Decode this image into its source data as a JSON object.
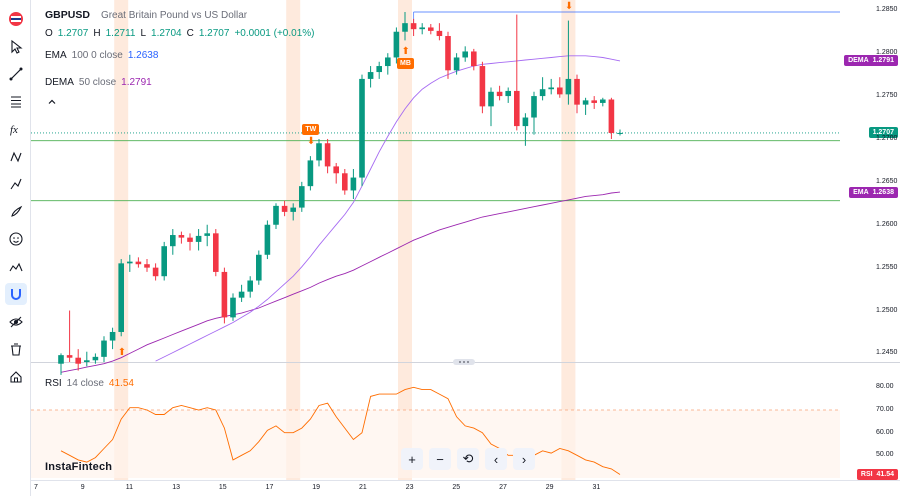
{
  "toolbar": {
    "items": [
      {
        "icon": "flag-icon",
        "label": ""
      },
      {
        "icon": "cursor-icon",
        "label": ""
      },
      {
        "icon": "trendline-icon",
        "label": ""
      },
      {
        "icon": "fibonacci-icon",
        "label": ""
      },
      {
        "icon": "function-icon",
        "label": ""
      },
      {
        "icon": "patterns-icon",
        "label": ""
      },
      {
        "icon": "prediction-icon",
        "label": ""
      },
      {
        "icon": "brush-icon",
        "label": ""
      },
      {
        "icon": "emoji-icon",
        "label": ""
      },
      {
        "icon": "ruler-icon",
        "label": ""
      },
      {
        "icon": "magnet-icon",
        "label": ""
      },
      {
        "icon": "eye-icon",
        "label": ""
      },
      {
        "icon": "trash-icon",
        "label": ""
      },
      {
        "icon": "home-icon",
        "label": ""
      }
    ]
  },
  "header": {
    "symbol": "GBPUSD",
    "description": "Great Britain Pound vs US Dollar",
    "o_label": "O",
    "o_val": "1.2707",
    "h_label": "H",
    "h_val": "1.2711",
    "l_label": "L",
    "l_val": "1.2704",
    "c_label": "C",
    "c_val": "1.2707",
    "change": "+0.0001 (+0.01%)"
  },
  "ema": {
    "name": "EMA",
    "params": "100 0 close",
    "value": "1.2638"
  },
  "dema": {
    "name": "DEMA",
    "params": "50 close",
    "value": "1.2791"
  },
  "rsi": {
    "name": "RSI",
    "params": "14 close",
    "value": "41.54"
  },
  "price_axis": {
    "ticks": [
      "1.2850",
      "1.2800",
      "1.2750",
      "1.2700",
      "1.2650",
      "1.2600",
      "1.2550",
      "1.2500",
      "1.2450"
    ],
    "labels": {
      "dema": "DEMA",
      "dema_val": "1.2791",
      "current": "1.2707",
      "ema": "EMA",
      "ema_val": "1.2638"
    }
  },
  "rsi_axis": {
    "ticks": [
      "80.00",
      "70.00",
      "60.00",
      "50.00"
    ],
    "label": "RSI",
    "label_val": "41.54"
  },
  "markers": {
    "tw": "TW",
    "mb": "MB",
    "en": "EN"
  },
  "dates": [
    "7",
    "9",
    "11",
    "13",
    "15",
    "17",
    "19",
    "21",
    "23",
    "25",
    "27",
    "29",
    "31"
  ],
  "brand": "InstaFintech",
  "nav": {
    "zoom_in": "+",
    "zoom_out": "−",
    "reset": "⟲",
    "back": "‹",
    "forward": "›"
  },
  "colors": {
    "up": "#089981",
    "down": "#f23645",
    "ema": "#9c27b0",
    "dema": "#9c27b0",
    "rsi": "#ff6d00",
    "highlight": "#fde3d2",
    "hline_blue": "#2962ff",
    "hline_green": "#4caf50"
  },
  "chart_data": {
    "type": "candlestick",
    "candles": [
      {
        "o": 1.2438,
        "h": 1.245,
        "l": 1.2425,
        "c": 1.2448
      },
      {
        "o": 1.2448,
        "h": 1.25,
        "l": 1.244,
        "c": 1.2445
      },
      {
        "o": 1.2445,
        "h": 1.2455,
        "l": 1.243,
        "c": 1.2438
      },
      {
        "o": 1.244,
        "h": 1.2452,
        "l": 1.2435,
        "c": 1.2442
      },
      {
        "o": 1.2442,
        "h": 1.245,
        "l": 1.2438,
        "c": 1.2446
      },
      {
        "o": 1.2446,
        "h": 1.247,
        "l": 1.244,
        "c": 1.2465
      },
      {
        "o": 1.2465,
        "h": 1.248,
        "l": 1.2455,
        "c": 1.2475
      },
      {
        "o": 1.2475,
        "h": 1.256,
        "l": 1.247,
        "c": 1.2555
      },
      {
        "o": 1.2555,
        "h": 1.2565,
        "l": 1.2545,
        "c": 1.2557
      },
      {
        "o": 1.2557,
        "h": 1.2562,
        "l": 1.255,
        "c": 1.2554
      },
      {
        "o": 1.2554,
        "h": 1.256,
        "l": 1.2545,
        "c": 1.255
      },
      {
        "o": 1.255,
        "h": 1.2555,
        "l": 1.2535,
        "c": 1.254
      },
      {
        "o": 1.254,
        "h": 1.258,
        "l": 1.2535,
        "c": 1.2575
      },
      {
        "o": 1.2575,
        "h": 1.2595,
        "l": 1.2565,
        "c": 1.2588
      },
      {
        "o": 1.2588,
        "h": 1.2592,
        "l": 1.2578,
        "c": 1.2585
      },
      {
        "o": 1.2585,
        "h": 1.259,
        "l": 1.257,
        "c": 1.258
      },
      {
        "o": 1.258,
        "h": 1.2595,
        "l": 1.257,
        "c": 1.2587
      },
      {
        "o": 1.2587,
        "h": 1.26,
        "l": 1.2575,
        "c": 1.259
      },
      {
        "o": 1.259,
        "h": 1.2595,
        "l": 1.254,
        "c": 1.2545
      },
      {
        "o": 1.2545,
        "h": 1.255,
        "l": 1.2485,
        "c": 1.2492
      },
      {
        "o": 1.2492,
        "h": 1.252,
        "l": 1.2488,
        "c": 1.2515
      },
      {
        "o": 1.2515,
        "h": 1.253,
        "l": 1.251,
        "c": 1.2522
      },
      {
        "o": 1.2522,
        "h": 1.254,
        "l": 1.2515,
        "c": 1.2535
      },
      {
        "o": 1.2535,
        "h": 1.257,
        "l": 1.253,
        "c": 1.2565
      },
      {
        "o": 1.2565,
        "h": 1.2605,
        "l": 1.256,
        "c": 1.26
      },
      {
        "o": 1.26,
        "h": 1.2625,
        "l": 1.2595,
        "c": 1.2622
      },
      {
        "o": 1.2622,
        "h": 1.2628,
        "l": 1.261,
        "c": 1.2615
      },
      {
        "o": 1.2615,
        "h": 1.2625,
        "l": 1.2605,
        "c": 1.262
      },
      {
        "o": 1.262,
        "h": 1.265,
        "l": 1.2615,
        "c": 1.2645
      },
      {
        "o": 1.2645,
        "h": 1.268,
        "l": 1.264,
        "c": 1.2675
      },
      {
        "o": 1.2675,
        "h": 1.27,
        "l": 1.2668,
        "c": 1.2695
      },
      {
        "o": 1.2695,
        "h": 1.27,
        "l": 1.266,
        "c": 1.2668
      },
      {
        "o": 1.2668,
        "h": 1.2672,
        "l": 1.2648,
        "c": 1.266
      },
      {
        "o": 1.266,
        "h": 1.2665,
        "l": 1.2635,
        "c": 1.264
      },
      {
        "o": 1.264,
        "h": 1.2665,
        "l": 1.263,
        "c": 1.2655
      },
      {
        "o": 1.2655,
        "h": 1.2775,
        "l": 1.2645,
        "c": 1.277
      },
      {
        "o": 1.277,
        "h": 1.2785,
        "l": 1.276,
        "c": 1.2778
      },
      {
        "o": 1.2778,
        "h": 1.279,
        "l": 1.277,
        "c": 1.2785
      },
      {
        "o": 1.2785,
        "h": 1.28,
        "l": 1.2775,
        "c": 1.2795
      },
      {
        "o": 1.2795,
        "h": 1.283,
        "l": 1.2788,
        "c": 1.2825
      },
      {
        "o": 1.2825,
        "h": 1.2848,
        "l": 1.2815,
        "c": 1.2835
      },
      {
        "o": 1.2835,
        "h": 1.284,
        "l": 1.282,
        "c": 1.2828
      },
      {
        "o": 1.2828,
        "h": 1.2835,
        "l": 1.2822,
        "c": 1.283
      },
      {
        "o": 1.283,
        "h": 1.2834,
        "l": 1.2822,
        "c": 1.2826
      },
      {
        "o": 1.2826,
        "h": 1.2835,
        "l": 1.2815,
        "c": 1.282
      },
      {
        "o": 1.282,
        "h": 1.2825,
        "l": 1.277,
        "c": 1.278
      },
      {
        "o": 1.278,
        "h": 1.28,
        "l": 1.2775,
        "c": 1.2795
      },
      {
        "o": 1.2795,
        "h": 1.2808,
        "l": 1.279,
        "c": 1.2802
      },
      {
        "o": 1.2802,
        "h": 1.2805,
        "l": 1.278,
        "c": 1.2785
      },
      {
        "o": 1.2785,
        "h": 1.279,
        "l": 1.273,
        "c": 1.2738
      },
      {
        "o": 1.2738,
        "h": 1.276,
        "l": 1.2715,
        "c": 1.2755
      },
      {
        "o": 1.2755,
        "h": 1.2762,
        "l": 1.2745,
        "c": 1.275
      },
      {
        "o": 1.275,
        "h": 1.276,
        "l": 1.2742,
        "c": 1.2756
      },
      {
        "o": 1.2756,
        "h": 1.2845,
        "l": 1.271,
        "c": 1.2715
      },
      {
        "o": 1.2715,
        "h": 1.273,
        "l": 1.2692,
        "c": 1.2725
      },
      {
        "o": 1.2725,
        "h": 1.2755,
        "l": 1.2705,
        "c": 1.275
      },
      {
        "o": 1.275,
        "h": 1.2772,
        "l": 1.2745,
        "c": 1.2758
      },
      {
        "o": 1.2758,
        "h": 1.277,
        "l": 1.2752,
        "c": 1.276
      },
      {
        "o": 1.276,
        "h": 1.2772,
        "l": 1.2748,
        "c": 1.2752
      },
      {
        "o": 1.2752,
        "h": 1.2838,
        "l": 1.274,
        "c": 1.277
      },
      {
        "o": 1.277,
        "h": 1.2775,
        "l": 1.273,
        "c": 1.274
      },
      {
        "o": 1.274,
        "h": 1.2748,
        "l": 1.2728,
        "c": 1.2745
      },
      {
        "o": 1.2745,
        "h": 1.275,
        "l": 1.2735,
        "c": 1.2742
      },
      {
        "o": 1.2742,
        "h": 1.2748,
        "l": 1.2738,
        "c": 1.2746
      },
      {
        "o": 1.2746,
        "h": 1.2748,
        "l": 1.27,
        "c": 1.2707
      },
      {
        "o": 1.2707,
        "h": 1.2711,
        "l": 1.2704,
        "c": 1.2707
      }
    ],
    "ema_values": [
      1.2428,
      1.243,
      1.2432,
      1.2434,
      1.2436,
      1.2438,
      1.2441,
      1.2445,
      1.245,
      1.2455,
      1.246,
      1.2464,
      1.2468,
      1.2472,
      1.2476,
      1.248,
      1.2484,
      1.2488,
      1.2491,
      1.2493,
      1.2495,
      1.2497,
      1.25,
      1.2503,
      1.2507,
      1.2511,
      1.2515,
      1.2519,
      1.2523,
      1.2527,
      1.2532,
      1.2536,
      1.254,
      1.2543,
      1.2547,
      1.2552,
      1.2557,
      1.2562,
      1.2567,
      1.2572,
      1.2577,
      1.2582,
      1.2586,
      1.259,
      1.2594,
      1.2597,
      1.26,
      1.2603,
      1.2606,
      1.2609,
      1.2611,
      1.2613,
      1.2615,
      1.2617,
      1.2619,
      1.2621,
      1.2623,
      1.2625,
      1.2627,
      1.2629,
      1.2631,
      1.2633,
      1.2634,
      1.2635,
      1.2637,
      1.2638
    ],
    "dema_values": [
      null,
      null,
      null,
      null,
      null,
      null,
      null,
      null,
      null,
      null,
      null,
      1.2441,
      1.2446,
      1.2451,
      1.2456,
      1.2461,
      1.2466,
      1.2471,
      1.2476,
      1.2481,
      1.2486,
      1.2492,
      1.2498,
      1.2505,
      1.2513,
      1.2522,
      1.2531,
      1.254,
      1.2551,
      1.2563,
      1.2576,
      1.2588,
      1.26,
      1.2612,
      1.2626,
      1.2645,
      1.2665,
      1.2685,
      1.2703,
      1.272,
      1.2735,
      1.2748,
      1.2758,
      1.2765,
      1.2771,
      1.2775,
      1.2779,
      1.2782,
      1.2785,
      1.2787,
      1.2788,
      1.2789,
      1.279,
      1.2791,
      1.2792,
      1.2793,
      1.2794,
      1.2795,
      1.2796,
      1.2797,
      1.2797,
      1.2797,
      1.2796,
      1.2795,
      1.2793,
      1.2791
    ],
    "rsi_values": [
      52,
      50,
      48,
      47,
      49,
      53,
      57,
      66,
      71,
      71,
      70,
      68,
      68,
      71,
      72,
      71,
      70,
      71,
      70,
      62,
      48,
      50,
      52,
      56,
      61,
      63,
      60,
      60,
      62,
      66,
      72,
      73,
      67,
      62,
      57,
      60,
      76,
      77,
      77,
      77,
      79,
      80,
      79,
      79,
      77,
      75,
      67,
      63,
      62,
      60,
      55,
      53,
      50,
      50,
      48,
      50,
      52,
      51,
      53,
      52,
      50,
      48,
      47,
      45,
      44,
      41.54
    ],
    "ylim": [
      1.244,
      1.2855
    ],
    "rsi_ylim": [
      40,
      85
    ],
    "hlines": {
      "blue": 1.2848,
      "green_top": 1.2698,
      "green_bottom": 1.2628
    },
    "dashed_current": 1.2707,
    "rsi_level": 70,
    "highlight_bands": [
      7,
      27,
      40,
      59
    ],
    "markers": [
      {
        "label": "TW",
        "index": 29,
        "dir": "down"
      },
      {
        "label": "MB",
        "index": 40,
        "dir": "up"
      },
      {
        "label": "EN",
        "index": 59,
        "dir": "down"
      },
      {
        "label": "",
        "index": 7,
        "dir": "up"
      }
    ]
  }
}
